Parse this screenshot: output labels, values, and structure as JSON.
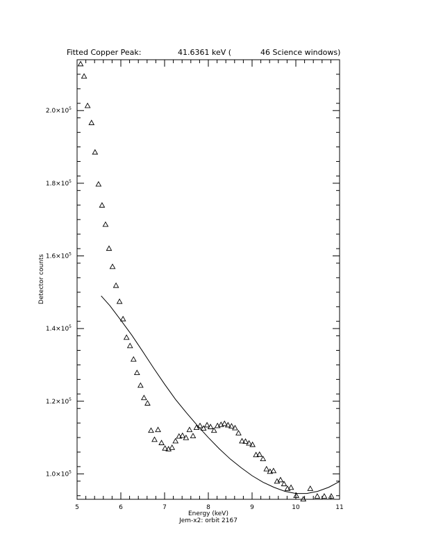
{
  "chart_data": {
    "type": "scatter",
    "title": {
      "label": "Fitted Copper Peak:",
      "value": "41.6361 keV (",
      "windows": "46 Science windows)"
    },
    "xlabel": "Energy (keV)",
    "ylabel": "Detector counts",
    "subcaption": "Jem-x2: orbit 2167",
    "xlim": [
      5,
      11
    ],
    "ylim": [
      93000,
      214000
    ],
    "x_ticks": [
      5,
      6,
      7,
      8,
      9,
      10,
      11
    ],
    "x_tick_labels": [
      "5",
      "6",
      "7",
      "8",
      "9",
      "10",
      "11"
    ],
    "y_ticks": [
      100000,
      120000,
      140000,
      160000,
      180000,
      200000
    ],
    "y_tick_labels": [
      {
        "mantissa": "1.0×10",
        "exp": "5"
      },
      {
        "mantissa": "1.2×10",
        "exp": "5"
      },
      {
        "mantissa": "1.4×10",
        "exp": "5"
      },
      {
        "mantissa": "1.6×10",
        "exp": "5"
      },
      {
        "mantissa": "1.8×10",
        "exp": "5"
      },
      {
        "mantissa": "2.0×10",
        "exp": "5"
      }
    ],
    "grid": false,
    "series": [
      {
        "kind": "scatter",
        "marker": "triangle",
        "x": [
          5.08,
          5.16,
          5.24,
          5.33,
          5.41,
          5.49,
          5.57,
          5.65,
          5.73,
          5.81,
          5.89,
          5.97,
          6.05,
          6.13,
          6.21,
          6.29,
          6.37,
          6.45,
          6.53,
          6.61,
          6.69,
          6.77,
          6.85,
          6.93,
          7.01,
          7.09,
          7.17,
          7.25,
          7.33,
          7.41,
          7.49,
          7.57,
          7.65,
          7.73,
          7.81,
          7.89,
          7.97,
          8.05,
          8.13,
          8.21,
          8.29,
          8.37,
          8.45,
          8.53,
          8.61,
          8.69,
          8.77,
          8.85,
          8.93,
          9.01,
          9.09,
          9.17,
          9.25,
          9.33,
          9.41,
          9.49,
          9.57,
          9.65,
          9.73,
          9.81,
          9.89,
          10.01,
          10.17,
          10.33,
          10.49,
          10.65,
          10.81
        ],
        "y": [
          212800,
          209400,
          201300,
          196600,
          188500,
          179700,
          173900,
          168600,
          162000,
          157000,
          151800,
          147400,
          142600,
          137500,
          135200,
          131500,
          127800,
          124300,
          120900,
          119400,
          111900,
          109400,
          112100,
          108500,
          107000,
          106800,
          107200,
          109000,
          110300,
          110500,
          109900,
          112100,
          110400,
          112700,
          113200,
          112500,
          113400,
          112900,
          111900,
          113200,
          113500,
          113800,
          113400,
          113100,
          112600,
          111200,
          109000,
          108900,
          108400,
          108000,
          105200,
          105300,
          104100,
          101300,
          100600,
          100800,
          97900,
          98300,
          97200,
          95900,
          96200,
          94000,
          93000,
          95900,
          93800,
          93800,
          93800
        ]
      },
      {
        "kind": "line",
        "name": "",
        "x": [
          5.55,
          5.75,
          6.0,
          6.25,
          6.5,
          6.75,
          7.0,
          7.25,
          7.5,
          7.75,
          8.0,
          8.25,
          8.5,
          8.75,
          9.0,
          9.25,
          9.5,
          9.75,
          10.0,
          10.25,
          10.5,
          10.75,
          11.0
        ],
        "y": [
          149000,
          146300,
          142300,
          138200,
          133700,
          129100,
          124700,
          120500,
          116800,
          113300,
          110000,
          106900,
          104100,
          101700,
          99500,
          97700,
          96300,
          95200,
          94600,
          94600,
          95200,
          96300,
          97900
        ]
      }
    ]
  }
}
